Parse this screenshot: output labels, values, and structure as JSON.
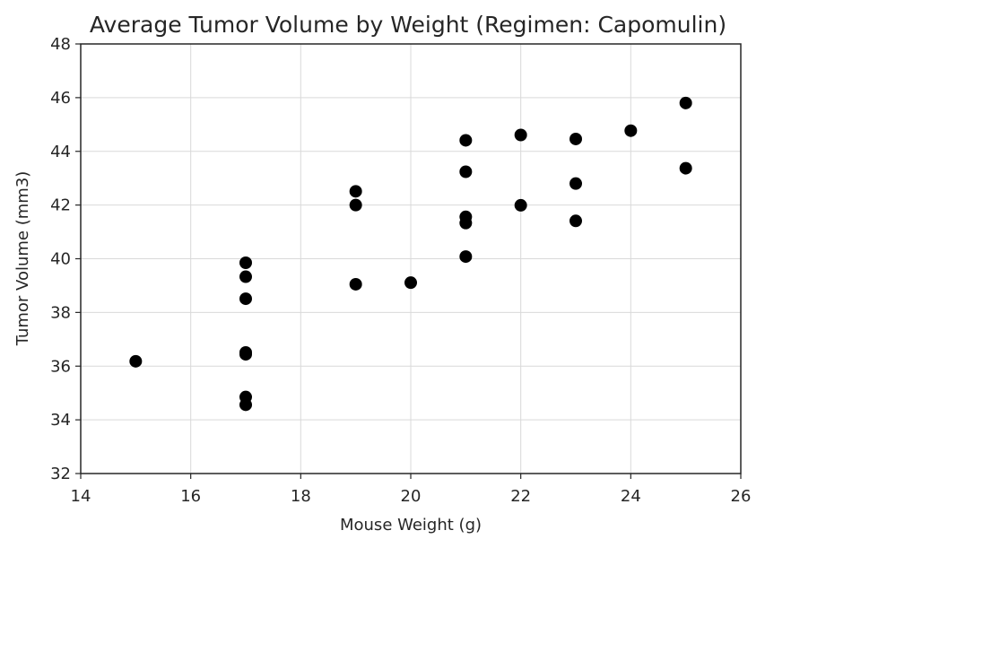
{
  "chart_data": {
    "type": "scatter",
    "title": "Average Tumor Volume by Weight (Regimen: Capomulin)",
    "xlabel": "Mouse Weight (g)",
    "ylabel": "Tumor Volume (mm3)",
    "xlim": [
      14,
      26
    ],
    "ylim": [
      32,
      48
    ],
    "xticks": [
      "14",
      "16",
      "18",
      "20",
      "22",
      "24",
      "26"
    ],
    "yticks": [
      "32",
      "34",
      "36",
      "38",
      "40",
      "42",
      "44",
      "46",
      "48"
    ],
    "grid": true,
    "marker_color": "#000000",
    "points": [
      {
        "x": 15,
        "y": 36.18
      },
      {
        "x": 17,
        "y": 39.85
      },
      {
        "x": 17,
        "y": 39.33
      },
      {
        "x": 17,
        "y": 38.51
      },
      {
        "x": 17,
        "y": 36.51
      },
      {
        "x": 17,
        "y": 36.44
      },
      {
        "x": 17,
        "y": 34.85
      },
      {
        "x": 17,
        "y": 34.56
      },
      {
        "x": 19,
        "y": 42.51
      },
      {
        "x": 19,
        "y": 42.0
      },
      {
        "x": 19,
        "y": 39.05
      },
      {
        "x": 20,
        "y": 39.11
      },
      {
        "x": 21,
        "y": 44.41
      },
      {
        "x": 21,
        "y": 43.24
      },
      {
        "x": 21,
        "y": 41.56
      },
      {
        "x": 21,
        "y": 41.33
      },
      {
        "x": 21,
        "y": 40.08
      },
      {
        "x": 22,
        "y": 44.61
      },
      {
        "x": 22,
        "y": 41.99
      },
      {
        "x": 23,
        "y": 44.46
      },
      {
        "x": 23,
        "y": 42.8
      },
      {
        "x": 23,
        "y": 41.41
      },
      {
        "x": 24,
        "y": 44.77
      },
      {
        "x": 25,
        "y": 45.8
      },
      {
        "x": 25,
        "y": 43.37
      }
    ]
  }
}
